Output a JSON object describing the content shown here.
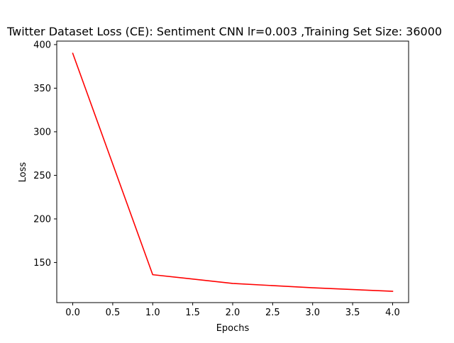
{
  "chart_data": {
    "type": "line",
    "title": "Twitter Dataset Loss (CE): Sentiment CNN lr=0.003 ,Training Set Size: 36000",
    "xlabel": "Epochs",
    "ylabel": "Loss",
    "x": [
      0,
      1,
      2,
      3,
      4
    ],
    "series": [
      {
        "values": [
          390,
          136,
          126,
          121,
          117
        ],
        "color": "#ff0000"
      }
    ],
    "xlim": [
      -0.2,
      4.2
    ],
    "ylim": [
      104,
      404
    ],
    "xticks": [
      0.0,
      0.5,
      1.0,
      1.5,
      2.0,
      2.5,
      3.0,
      3.5,
      4.0
    ],
    "xtick_labels": [
      "0.0",
      "0.5",
      "1.0",
      "1.5",
      "2.0",
      "2.5",
      "3.0",
      "3.5",
      "4.0"
    ],
    "yticks": [
      150,
      200,
      250,
      300,
      350,
      400
    ],
    "ytick_labels": [
      "150",
      "200",
      "250",
      "300",
      "350",
      "400"
    ],
    "grid": false,
    "legend": "none"
  }
}
